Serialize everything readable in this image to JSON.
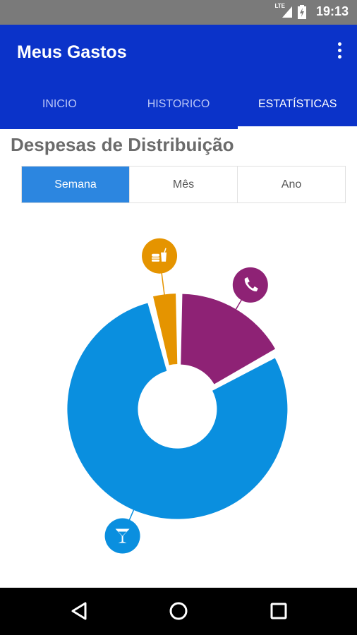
{
  "status_bar": {
    "network": "LTE",
    "time": "19:13"
  },
  "app_bar": {
    "title": "Meus Gastos"
  },
  "tabs": [
    {
      "label": "INICIO",
      "active": false
    },
    {
      "label": "HISTORICO",
      "active": false
    },
    {
      "label": "ESTATÍSTICAS",
      "active": true
    }
  ],
  "section": {
    "title": "Despesas de Distribuição"
  },
  "period_selector": {
    "options": [
      "Semana",
      "Mês",
      "Ano"
    ],
    "selected": "Semana"
  },
  "colors": {
    "app_bar": "#0b33c9",
    "accent": "#2c86e0",
    "drinks": "#0a8fdf",
    "phone": "#8e2275",
    "food": "#e59400"
  },
  "chart_data": {
    "type": "pie",
    "slices": [
      {
        "icon": "phone-icon",
        "color": "#8e2275",
        "share": 0.17
      },
      {
        "icon": "cocktail-icon",
        "color": "#0a8fdf",
        "share": 0.79
      },
      {
        "icon": "fast-food-icon",
        "color": "#e59400",
        "share": 0.04
      }
    ]
  },
  "nav_bar": {
    "buttons": [
      "back-icon",
      "home-icon",
      "recents-icon"
    ]
  }
}
